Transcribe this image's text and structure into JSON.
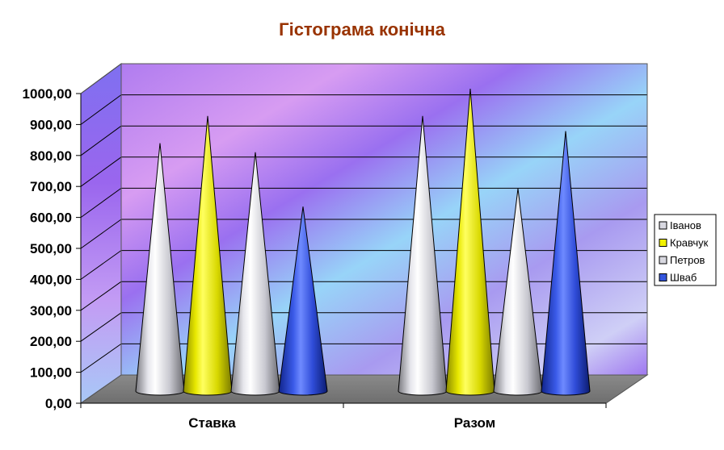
{
  "chart_data": {
    "type": "bar",
    "shape": "cone-3d",
    "title": "Гістограма конічна",
    "categories": [
      "Ставка",
      "Разом"
    ],
    "series": [
      {
        "name": "Іванов",
        "values": [
          820,
          910
        ],
        "color": "#d8d8e0"
      },
      {
        "name": "Кравчук",
        "values": [
          910,
          1000
        ],
        "color": "#f2f200"
      },
      {
        "name": "Петров",
        "values": [
          790,
          670
        ],
        "color": "#d8d8e0"
      },
      {
        "name": "Шваб",
        "values": [
          610,
          860
        ],
        "color": "#3355dd"
      }
    ],
    "y_ticks": [
      "0,00",
      "100,00",
      "200,00",
      "300,00",
      "400,00",
      "500,00",
      "600,00",
      "700,00",
      "800,00",
      "900,00",
      "1000,00"
    ],
    "ylim": [
      0,
      1000
    ],
    "grid": true,
    "legend_position": "right"
  }
}
